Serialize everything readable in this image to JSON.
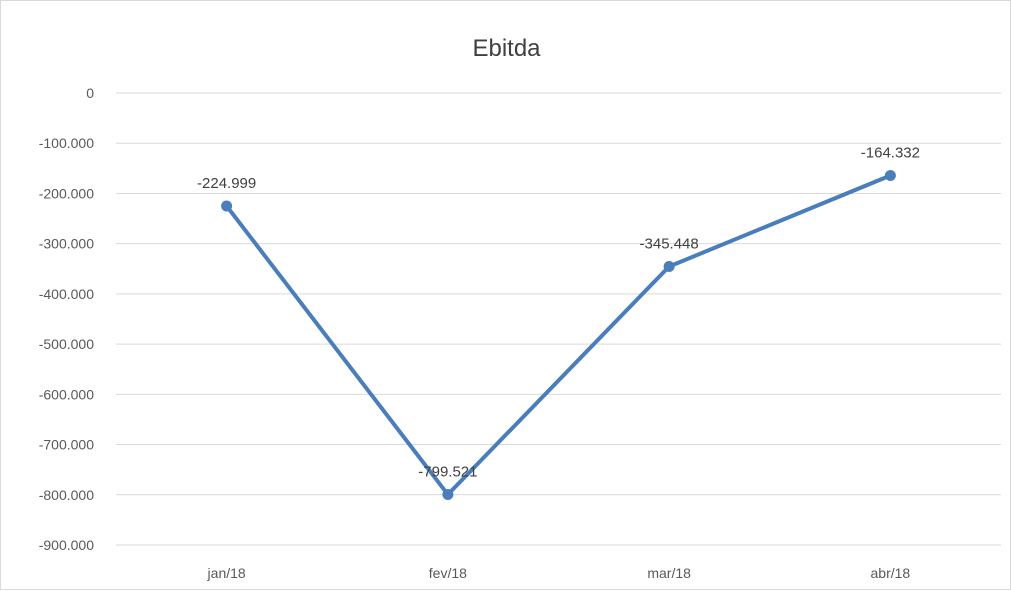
{
  "chart_data": {
    "type": "line",
    "title": "Ebitda",
    "categories": [
      "jan/18",
      "fev/18",
      "mar/18",
      "abr/18"
    ],
    "series": [
      {
        "values": [
          -224999,
          -799521,
          -345448,
          -164332
        ],
        "labels": [
          "-224.999",
          "-799.521",
          "-345.448",
          "-164.332"
        ],
        "color": "#4a7ebb"
      }
    ],
    "ylim": [
      -900000,
      0
    ],
    "yticks": [
      0,
      -100000,
      -200000,
      -300000,
      -400000,
      -500000,
      -600000,
      -700000,
      -800000,
      -900000
    ],
    "ytick_labels": [
      "0",
      "-100.000",
      "-200.000",
      "-300.000",
      "-400.000",
      "-500.000",
      "-600.000",
      "-700.000",
      "-800.000",
      "-900.000"
    ],
    "grid": true,
    "legend": "none",
    "gridline_color": "#d9d9d9",
    "text_color": "#595959"
  }
}
